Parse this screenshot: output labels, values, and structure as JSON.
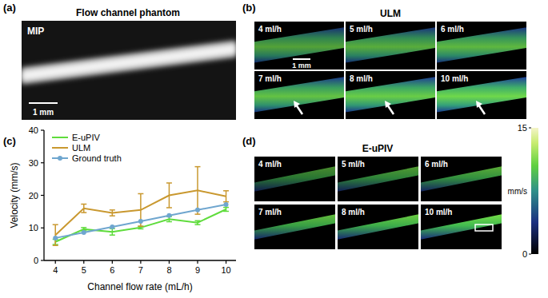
{
  "chart_data": {
    "type": "line",
    "x_label": "Channel flow rate (mL/h)",
    "y_label": "Velocity (mm/s)",
    "x": [
      4,
      5,
      6,
      7,
      8,
      9,
      10
    ],
    "series": [
      {
        "name": "E-uPIV",
        "color": "#5fdc3c",
        "marker": "none",
        "line_style": "solid",
        "values": [
          5.7,
          9.6,
          8.8,
          10.1,
          12.7,
          11.6,
          15.7
        ],
        "errors": [
          0.8,
          0.5,
          1.0,
          0.4,
          0.8,
          0.6,
          0.6
        ]
      },
      {
        "name": "ULM",
        "color": "#c9982f",
        "marker": "none",
        "line_style": "solid",
        "values": [
          7.8,
          16.0,
          14.6,
          15.5,
          20.0,
          21.5,
          19.7
        ],
        "errors": [
          3.2,
          1.3,
          0.9,
          5.0,
          3.8,
          7.3,
          1.7
        ]
      },
      {
        "name": "Ground truth",
        "color": "#6fa6cf",
        "marker": "circle",
        "line_style": "solid",
        "values": [
          6.9,
          8.6,
          10.3,
          12.0,
          13.8,
          15.5,
          17.2
        ]
      }
    ],
    "xlim": [
      3.6,
      10.35
    ],
    "xticks": [
      4,
      5,
      6,
      7,
      8,
      9,
      10
    ],
    "ylim": [
      0,
      40
    ],
    "yticks": [
      0,
      10,
      20,
      30,
      40
    ],
    "grid": false,
    "legend": "upper left"
  },
  "panels": {
    "a": {
      "label": "(a)",
      "title": "Flow channel phantom",
      "inset": "MIP",
      "scale_bar": "1 mm"
    },
    "b": {
      "label": "(b)",
      "title": "ULM",
      "tiles": [
        "4 ml/h",
        "5 ml/h",
        "6 ml/h",
        "7 ml/h",
        "8 ml/h",
        "10 ml/h"
      ],
      "scale_bar": "1 mm"
    },
    "c": {
      "label": "(c)"
    },
    "d": {
      "label": "(d)",
      "title": "E-uPIV",
      "tiles": [
        "4 ml/h",
        "5 ml/h",
        "6 ml/h",
        "7 ml/h",
        "8 ml/h",
        "10 ml/h"
      ]
    },
    "colorbar": {
      "range": [
        0,
        15
      ],
      "ticks": [
        0,
        15
      ],
      "unit": "mm/s"
    }
  }
}
